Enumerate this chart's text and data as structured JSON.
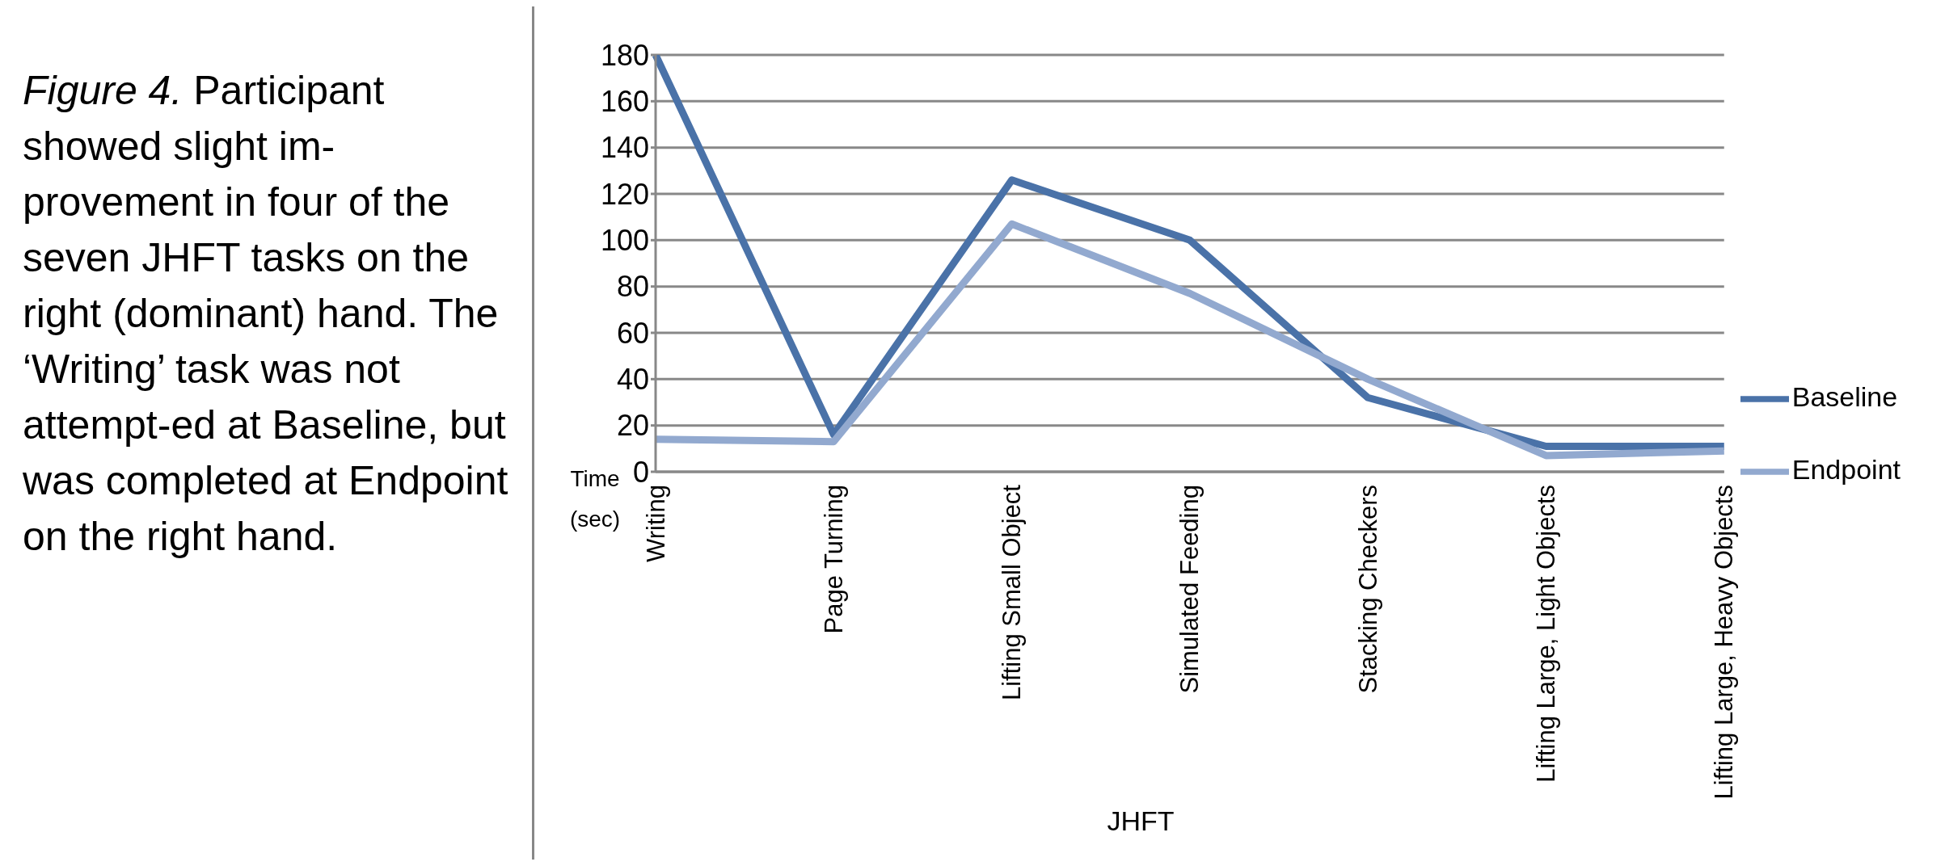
{
  "chart_data": {
    "type": "line",
    "title": "Figure 4.",
    "subtitle": "Participant showed slight im-provement in four of the seven JHFT tasks on the right (dominant) hand. The ‘Writing’ task was not attempt-ed at Baseline, but was completed at Endpoint on the right hand.",
    "xlabel": "JHFT",
    "ylabel": "Time (sec)",
    "categories": [
      "Writing",
      "Page Turning",
      "Lifting Small Object",
      "Simulated Feeding",
      "Stacking Checkers",
      "Lifting Large, Light Objects",
      "Lifting Large, Heavy Objects"
    ],
    "series": [
      {
        "name": "Baseline",
        "color": "#4a72a8",
        "values": [
          180,
          16,
          126,
          100,
          32,
          11,
          11
        ]
      },
      {
        "name": "Endpoint",
        "color": "#92a9cf",
        "values": [
          14,
          13,
          107,
          77,
          40,
          7,
          9
        ]
      }
    ],
    "ylim": [
      0,
      180
    ],
    "yticks": [
      0,
      20,
      40,
      60,
      80,
      100,
      120,
      140,
      160,
      180
    ],
    "grid": "y",
    "legend": "right",
    "marker": "none",
    "line_style": "solid"
  }
}
